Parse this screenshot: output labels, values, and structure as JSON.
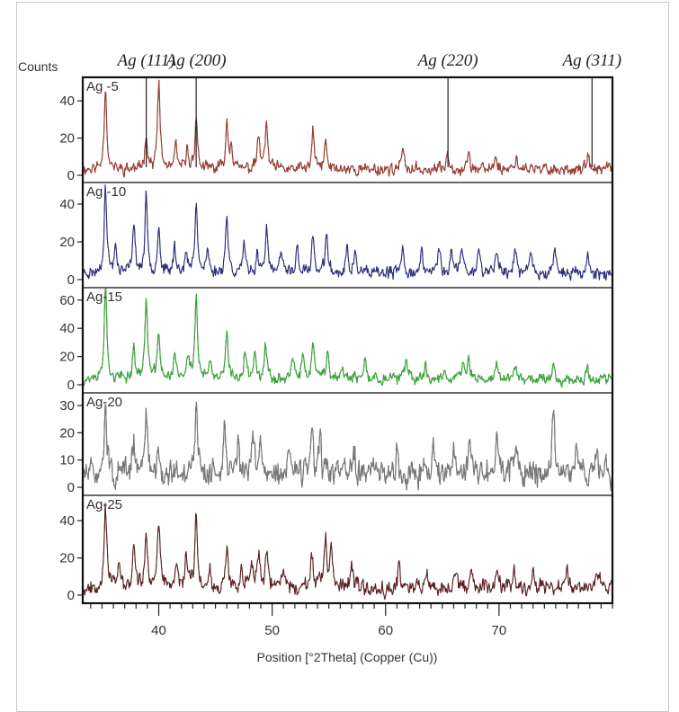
{
  "chart_data": {
    "type": "line",
    "title": "",
    "xlabel": "Position [°2Theta] (Copper (Cu))",
    "ylabel": "Counts",
    "xlim": [
      33.3,
      80.0
    ],
    "x_ticks": [
      40,
      50,
      60,
      70
    ],
    "x_minor_step": 1,
    "grid": false,
    "legend_position": "inside-top-left per panel",
    "reference_lines": [
      {
        "label": "Ag (111)",
        "x": 38.9
      },
      {
        "label": "Ag (200)",
        "x": 43.3
      },
      {
        "label": "Ag (220)",
        "x": 65.5
      },
      {
        "label": "Ag (311)",
        "x": 78.2
      }
    ],
    "series": [
      {
        "name": "Ag -5",
        "color": "#c0392b",
        "ylim": [
          -4,
          52
        ],
        "y_ticks": [
          0,
          20,
          40
        ],
        "noise_level": 4,
        "seed": 11,
        "peaks": [
          [
            35.3,
            45
          ],
          [
            38.9,
            20
          ],
          [
            40.0,
            47
          ],
          [
            41.5,
            12
          ],
          [
            42.5,
            10
          ],
          [
            43.3,
            28
          ],
          [
            46.0,
            25
          ],
          [
            46.4,
            14
          ],
          [
            48.8,
            18
          ],
          [
            49.5,
            24
          ],
          [
            53.6,
            20
          ],
          [
            54.7,
            15
          ],
          [
            61.5,
            10
          ],
          [
            65.5,
            9
          ],
          [
            67.3,
            8
          ],
          [
            69.7,
            7
          ],
          [
            71.5,
            7
          ],
          [
            77.8,
            6
          ]
        ]
      },
      {
        "name": "Ag -10",
        "color": "#2c2c9c",
        "ylim": [
          -4,
          52
        ],
        "y_ticks": [
          0,
          20,
          40
        ],
        "noise_level": 4,
        "seed": 23,
        "peaks": [
          [
            35.3,
            47
          ],
          [
            36.2,
            14
          ],
          [
            37.8,
            28
          ],
          [
            38.9,
            40
          ],
          [
            40.0,
            25
          ],
          [
            41.4,
            14
          ],
          [
            42.4,
            10
          ],
          [
            43.3,
            40
          ],
          [
            44.3,
            12
          ],
          [
            46.0,
            32
          ],
          [
            47.5,
            15
          ],
          [
            48.7,
            12
          ],
          [
            49.5,
            24
          ],
          [
            50.8,
            12
          ],
          [
            52.2,
            14
          ],
          [
            53.6,
            19
          ],
          [
            54.8,
            22
          ],
          [
            56.6,
            12
          ],
          [
            57.3,
            10
          ],
          [
            61.5,
            13
          ],
          [
            63.2,
            12
          ],
          [
            64.7,
            14
          ],
          [
            65.8,
            12
          ],
          [
            66.7,
            14
          ],
          [
            68.2,
            14
          ],
          [
            69.8,
            14
          ],
          [
            71.4,
            13
          ],
          [
            72.8,
            12
          ],
          [
            74.9,
            16
          ],
          [
            77.8,
            10
          ]
        ]
      },
      {
        "name": "Ag-15",
        "color": "#33cc33",
        "ylim": [
          -5,
          68
        ],
        "y_ticks": [
          0,
          20,
          40,
          60
        ],
        "noise_level": 5,
        "seed": 37,
        "peaks": [
          [
            35.3,
            68
          ],
          [
            37.8,
            22
          ],
          [
            38.9,
            60
          ],
          [
            40.0,
            33
          ],
          [
            41.4,
            18
          ],
          [
            42.6,
            16
          ],
          [
            43.3,
            60
          ],
          [
            44.5,
            10
          ],
          [
            46.0,
            32
          ],
          [
            47.6,
            20
          ],
          [
            48.5,
            21
          ],
          [
            49.4,
            25
          ],
          [
            51.8,
            13
          ],
          [
            52.7,
            14
          ],
          [
            53.6,
            27
          ],
          [
            54.9,
            21
          ],
          [
            56.2,
            10
          ],
          [
            58.2,
            12
          ],
          [
            61.8,
            13
          ],
          [
            63.5,
            10
          ],
          [
            65.2,
            9
          ],
          [
            66.8,
            10
          ],
          [
            67.3,
            15
          ],
          [
            69.8,
            12
          ],
          [
            71.5,
            10
          ],
          [
            74.8,
            11
          ],
          [
            77.8,
            8
          ]
        ]
      },
      {
        "name": "Ag-20",
        "color": "#8a8a8a",
        "ylim": [
          -3,
          34
        ],
        "y_ticks": [
          0,
          10,
          20,
          30
        ],
        "noise_level": 6,
        "seed": 51,
        "peaks": [
          [
            35.3,
            28
          ],
          [
            37.8,
            12
          ],
          [
            38.9,
            22
          ],
          [
            40.0,
            10
          ],
          [
            43.3,
            28
          ],
          [
            45.8,
            17
          ],
          [
            47.0,
            12
          ],
          [
            48.3,
            13
          ],
          [
            49.0,
            14
          ],
          [
            51.5,
            10
          ],
          [
            53.5,
            14
          ],
          [
            54.2,
            12
          ],
          [
            57.2,
            9
          ],
          [
            61.0,
            10
          ],
          [
            64.2,
            11
          ],
          [
            66.0,
            11
          ],
          [
            67.4,
            13
          ],
          [
            69.8,
            15
          ],
          [
            71.5,
            12
          ],
          [
            74.8,
            23
          ],
          [
            76.8,
            10
          ],
          [
            78.6,
            9
          ]
        ]
      },
      {
        "name": "Ag-25",
        "color": "#6b1a1a",
        "ylim": [
          -4,
          52
        ],
        "y_ticks": [
          0,
          20,
          40
        ],
        "noise_level": 5,
        "seed": 67,
        "peaks": [
          [
            35.3,
            46
          ],
          [
            36.5,
            12
          ],
          [
            37.8,
            22
          ],
          [
            38.9,
            30
          ],
          [
            40.0,
            37
          ],
          [
            41.6,
            12
          ],
          [
            42.4,
            18
          ],
          [
            43.3,
            40
          ],
          [
            44.5,
            10
          ],
          [
            46.0,
            20
          ],
          [
            47.3,
            13
          ],
          [
            48.2,
            14
          ],
          [
            48.8,
            18
          ],
          [
            49.5,
            20
          ],
          [
            51.0,
            10
          ],
          [
            53.5,
            18
          ],
          [
            54.7,
            25
          ],
          [
            55.2,
            18
          ],
          [
            57.0,
            10
          ],
          [
            61.2,
            12
          ],
          [
            63.6,
            10
          ],
          [
            66.2,
            11
          ],
          [
            67.5,
            10
          ],
          [
            69.8,
            14
          ],
          [
            71.3,
            12
          ],
          [
            73.0,
            10
          ],
          [
            76.0,
            9
          ],
          [
            78.8,
            10
          ]
        ]
      }
    ]
  },
  "labels": {
    "y_axis": "Counts",
    "x_axis": "Position [°2Theta] (Copper (Cu))"
  }
}
